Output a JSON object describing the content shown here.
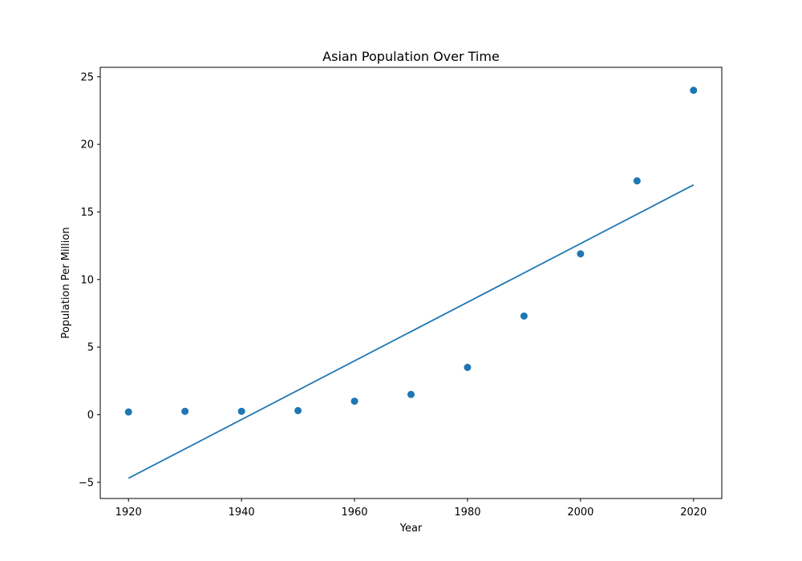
{
  "chart_data": {
    "type": "scatter",
    "title": "Asian Population Over Time",
    "xlabel": "Year",
    "ylabel": "Population Per Million",
    "xlim": [
      1915,
      2025
    ],
    "ylim": [
      -6.2,
      25.7
    ],
    "xticks": [
      1920,
      1940,
      1960,
      1980,
      2000,
      2020
    ],
    "yticks": [
      -5,
      0,
      5,
      10,
      15,
      20,
      25
    ],
    "ytick_labels": [
      "−5",
      "0",
      "5",
      "10",
      "15",
      "20",
      "25"
    ],
    "grid": false,
    "color": "#1f77b4",
    "series": [
      {
        "type": "scatter",
        "x": [
          1920,
          1930,
          1940,
          1950,
          1960,
          1970,
          1980,
          1990,
          2000,
          2010,
          2020
        ],
        "y": [
          0.2,
          0.25,
          0.25,
          0.3,
          1.0,
          1.5,
          3.5,
          7.3,
          11.9,
          17.3,
          24.0
        ]
      },
      {
        "type": "line",
        "x": [
          1920,
          2020
        ],
        "y": [
          -4.7,
          17.0
        ]
      }
    ]
  }
}
